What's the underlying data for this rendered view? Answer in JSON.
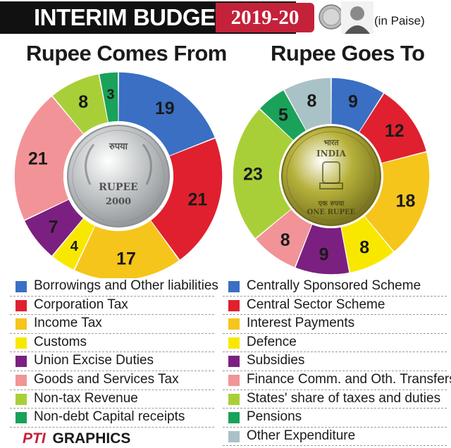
{
  "header": {
    "title_part1": "INTERIM BUDGET",
    "title_part2": "2019-20",
    "unit": "(in Paise)"
  },
  "footer": {
    "agency": "PTI",
    "label": "GRAPHICS"
  },
  "colors": {
    "blue": "#3a6fc4",
    "red": "#e0202e",
    "orange": "#f5c51c",
    "yellow": "#f8e800",
    "purple": "#7b2080",
    "pink": "#f29497",
    "lightgreen": "#a9cf38",
    "green": "#1aa15a",
    "grey": "#a9c2c6"
  },
  "chart_data": [
    {
      "type": "pie",
      "title": "Rupee Comes From",
      "categories": [
        "Borrowings and Other liabilities",
        "Corporation Tax",
        "Income Tax",
        "Customs",
        "Union Excise Duties",
        "Goods and Services Tax",
        "Non-tax Revenue",
        "Non-debt Capital receipts"
      ],
      "values": [
        19,
        21,
        17,
        4,
        7,
        21,
        8,
        3
      ],
      "colors": [
        "#3a6fc4",
        "#e0202e",
        "#f5c51c",
        "#f8e800",
        "#7b2080",
        "#f29497",
        "#a9cf38",
        "#1aa15a"
      ],
      "center_coin_text": [
        "रुपया",
        "RUPEE",
        "2000"
      ],
      "legend": "bottom"
    },
    {
      "type": "pie",
      "title": "Rupee Goes To",
      "categories": [
        "Centrally Sponsored Scheme",
        "Central Sector Scheme",
        "Interest Payments",
        "Defence",
        "Subsidies",
        "Finance Comm. and Oth. Transfers",
        "States' share of taxes and duties",
        "Pensions",
        "Other Expenditure"
      ],
      "values": [
        9,
        12,
        18,
        8,
        9,
        8,
        23,
        5,
        8
      ],
      "colors": [
        "#3a6fc4",
        "#e0202e",
        "#f5c51c",
        "#f8e800",
        "#7b2080",
        "#f29497",
        "#a9cf38",
        "#1aa15a",
        "#a9c2c6"
      ],
      "center_coin_text": [
        "भारत",
        "INDIA",
        "एक रुपया",
        "ONE RUPEE"
      ],
      "legend": "bottom"
    }
  ]
}
